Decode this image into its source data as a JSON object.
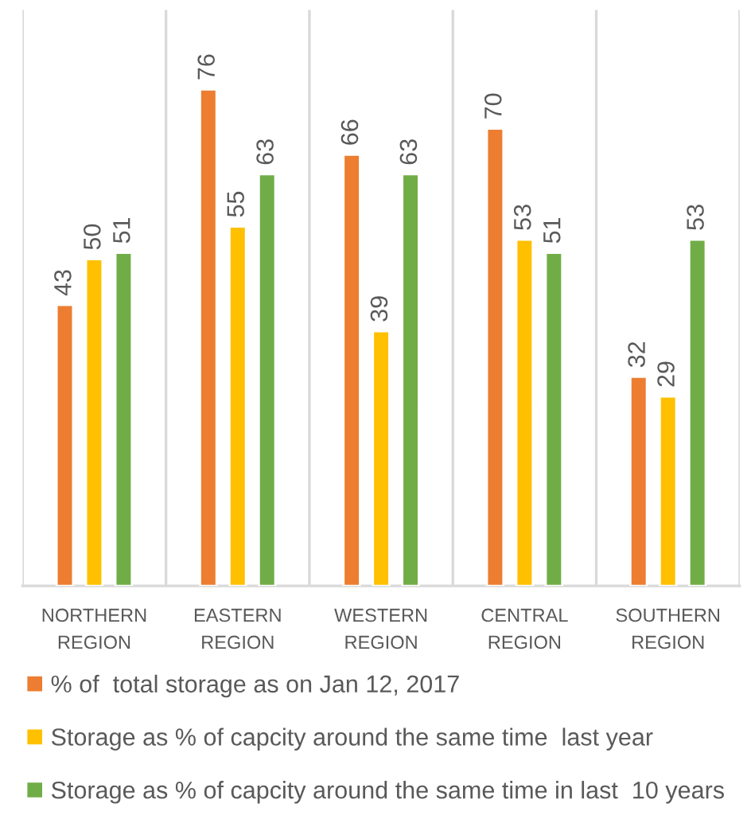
{
  "chart_data": {
    "type": "bar",
    "categories": [
      "NORTHERN REGION",
      "EASTERN REGION",
      "WESTERN REGION",
      "CENTRAL REGION",
      "SOUTHERN REGION"
    ],
    "series": [
      {
        "name": "% of  total storage as on Jan 12, 2017",
        "color": "#ed7d31",
        "values": [
          43,
          76,
          66,
          70,
          32
        ]
      },
      {
        "name": "Storage as % of capcity around the same time  last year",
        "color": "#ffc000",
        "values": [
          50,
          55,
          39,
          53,
          29
        ]
      },
      {
        "name": "Storage as % of capcity around the same time in last  10 years",
        "color": "#70ad47",
        "values": [
          51,
          63,
          63,
          51,
          53
        ]
      }
    ],
    "data_labels": true,
    "grid": "x",
    "legend": "bottom",
    "tick_labels": "x"
  }
}
